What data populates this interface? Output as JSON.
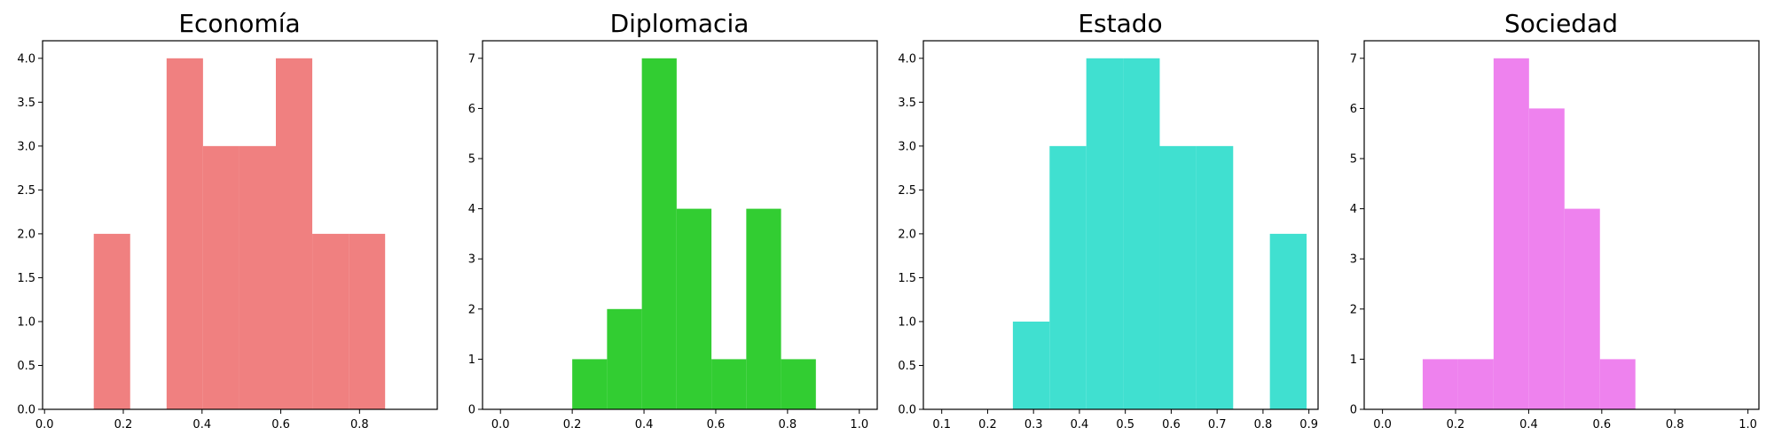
{
  "chart_data": [
    {
      "type": "bar",
      "title": "Economía",
      "color": "#f08080",
      "xlim": [
        -0.005,
        0.9975
      ],
      "ylim": [
        0,
        4.2
      ],
      "xticks": [
        0.0,
        0.2,
        0.4,
        0.6,
        0.8
      ],
      "xtick_labels": [
        "0.0",
        "0.2",
        "0.4",
        "0.6",
        "0.8"
      ],
      "yticks": [
        0,
        0.5,
        1.0,
        1.5,
        2.0,
        2.5,
        3.0,
        3.5,
        4.0
      ],
      "ytick_labels": [
        "0.0",
        "0.5",
        "1.0",
        "1.5",
        "2.0",
        "2.5",
        "3.0",
        "3.5",
        "4.0"
      ],
      "bins": [
        [
          0.125,
          0.2175,
          2
        ],
        [
          0.31,
          0.4025,
          4
        ],
        [
          0.4025,
          0.495,
          3
        ],
        [
          0.495,
          0.5875,
          3
        ],
        [
          0.5875,
          0.68,
          4
        ],
        [
          0.68,
          0.7725,
          2
        ],
        [
          0.7725,
          0.865,
          2
        ]
      ]
    },
    {
      "type": "bar",
      "title": "Diplomacia",
      "color": "#32cd32",
      "xlim": [
        -0.05,
        1.05
      ],
      "ylim": [
        0,
        7.35
      ],
      "xticks": [
        0.0,
        0.2,
        0.4,
        0.6,
        0.8,
        1.0
      ],
      "xtick_labels": [
        "0.0",
        "0.2",
        "0.4",
        "0.6",
        "0.8",
        "1.0"
      ],
      "yticks": [
        0,
        1,
        2,
        3,
        4,
        5,
        6,
        7
      ],
      "ytick_labels": [
        "0",
        "1",
        "2",
        "3",
        "4",
        "5",
        "6",
        "7"
      ],
      "bins": [
        [
          0.2,
          0.297,
          1
        ],
        [
          0.297,
          0.394,
          2
        ],
        [
          0.394,
          0.491,
          7
        ],
        [
          0.491,
          0.588,
          4
        ],
        [
          0.588,
          0.685,
          1
        ],
        [
          0.685,
          0.782,
          4
        ],
        [
          0.782,
          0.879,
          1
        ]
      ]
    },
    {
      "type": "bar",
      "title": "Estado",
      "color": "#40e0d0",
      "xlim": [
        0.06,
        0.92
      ],
      "ylim": [
        0,
        4.2
      ],
      "xticks": [
        0.1,
        0.2,
        0.3,
        0.4,
        0.5,
        0.6,
        0.7,
        0.8,
        0.9
      ],
      "xtick_labels": [
        "0.1",
        "0.2",
        "0.3",
        "0.4",
        "0.5",
        "0.6",
        "0.7",
        "0.8",
        "0.9"
      ],
      "yticks": [
        0,
        0.5,
        1.0,
        1.5,
        2.0,
        2.5,
        3.0,
        3.5,
        4.0
      ],
      "ytick_labels": [
        "0.0",
        "0.5",
        "1.0",
        "1.5",
        "2.0",
        "2.5",
        "3.0",
        "3.5",
        "4.0"
      ],
      "bins": [
        [
          0.255,
          0.335,
          1
        ],
        [
          0.335,
          0.415,
          3
        ],
        [
          0.415,
          0.495,
          4
        ],
        [
          0.495,
          0.575,
          4
        ],
        [
          0.575,
          0.655,
          3
        ],
        [
          0.655,
          0.735,
          3
        ],
        [
          0.815,
          0.895,
          2
        ]
      ]
    },
    {
      "type": "bar",
      "title": "Sociedad",
      "color": "#ee82ee",
      "xlim": [
        -0.05,
        1.03
      ],
      "ylim": [
        0,
        7.35
      ],
      "xticks": [
        0.0,
        0.2,
        0.4,
        0.6,
        0.8,
        1.0
      ],
      "xtick_labels": [
        "0.0",
        "0.2",
        "0.4",
        "0.6",
        "0.8",
        "1.0"
      ],
      "yticks": [
        0,
        1,
        2,
        3,
        4,
        5,
        6,
        7
      ],
      "ytick_labels": [
        "0",
        "1",
        "2",
        "3",
        "4",
        "5",
        "6",
        "7"
      ],
      "bins": [
        [
          0.11,
          0.207,
          1
        ],
        [
          0.207,
          0.304,
          1
        ],
        [
          0.304,
          0.401,
          7
        ],
        [
          0.401,
          0.498,
          6
        ],
        [
          0.498,
          0.595,
          4
        ],
        [
          0.595,
          0.692,
          1
        ]
      ]
    }
  ]
}
